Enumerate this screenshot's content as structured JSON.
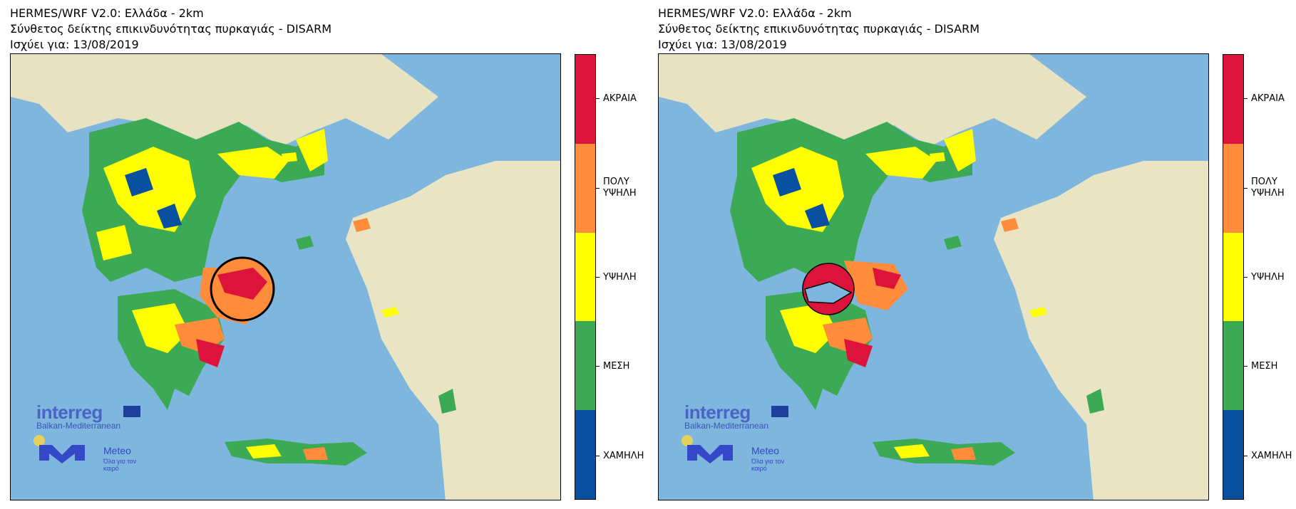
{
  "panels": [
    {
      "title_line1": "HERMES/WRF V2.0: Ελλάδα - 2km",
      "title_line2": "Σύνθετος δείκτης επικινδυνότητας πυρκαγιάς - DISARM",
      "title_line3": "Ισχύει για: 13/08/2019"
    },
    {
      "title_line1": "HERMES/WRF V2.0: Ελλάδα - 2km",
      "title_line2": "Σύνθετος δείκτης επικινδυνότητας πυρκαγιάς - DISARM",
      "title_line3": "Ισχύει για: 13/08/2019"
    }
  ],
  "legend": {
    "levels": [
      "ΑΚΡΑΙΑ",
      "ΠΟΛΥ\nΥΨΗΛΗ",
      "ΥΨΗΛΗ",
      "ΜΕΣΗ",
      "ΧΑΜΗΛΗ"
    ],
    "level_line1": [
      "ΑΚΡΑΙΑ",
      "ΠΟΛΥ",
      "ΥΨΗΛΗ",
      "ΜΕΣΗ",
      "ΧΑΜΗΛΗ"
    ],
    "level_line2": [
      "",
      "ΥΨΗΛΗ",
      "",
      "",
      ""
    ],
    "colors": [
      "#dc143c",
      "#ff8c3a",
      "#ffff00",
      "#3caa55",
      "#0a50a0"
    ]
  },
  "logos": {
    "interreg_word": "interreg",
    "interreg_program": "Balkan-Mediterranean",
    "meteo_name": "Meteo",
    "meteo_tagline": "Όλα για τον καιρό"
  },
  "colors": {
    "sea": "#7eb6de",
    "land": "#e9e4c4",
    "border": "#000000"
  },
  "icons": [
    "eu-flag-icon",
    "meteo-logo-icon",
    "magnifier-circle-icon"
  ]
}
